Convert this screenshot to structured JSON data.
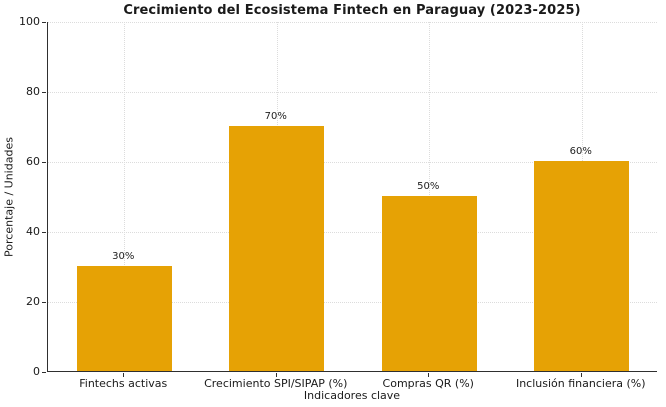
{
  "chart_data": {
    "type": "bar",
    "title": "Crecimiento del Ecosistema Fintech en Paraguay (2023-2025)",
    "xlabel": "Indicadores clave",
    "ylabel": "Porcentaje / Unidades",
    "categories": [
      "Fintechs activas",
      "Crecimiento SPI/SIPAP (%)",
      "Compras QR (%)",
      "Inclusión financiera (%)"
    ],
    "values": [
      30,
      70,
      50,
      60
    ],
    "value_labels": [
      "30%",
      "70%",
      "50%",
      "60%"
    ],
    "ylim": [
      0,
      100
    ],
    "yticks": [
      0,
      20,
      40,
      60,
      80,
      100
    ],
    "grid": true,
    "legend": "none",
    "colors": {
      "bar": "#e6a205",
      "grid": "#dcdcdc",
      "spine": "#2f2f2f",
      "text": "#1a1a1a"
    }
  }
}
